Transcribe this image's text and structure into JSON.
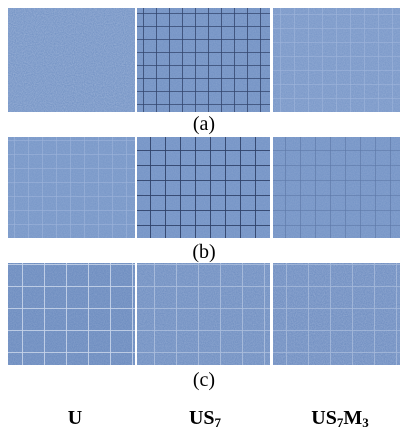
{
  "figure": {
    "rows": [
      {
        "label": "(a)"
      },
      {
        "label": "(b)"
      },
      {
        "label": "(c)"
      }
    ],
    "columns": [
      [
        "U"
      ],
      [
        "US",
        "7"
      ],
      [
        "US",
        "7",
        "M",
        "3"
      ]
    ]
  }
}
